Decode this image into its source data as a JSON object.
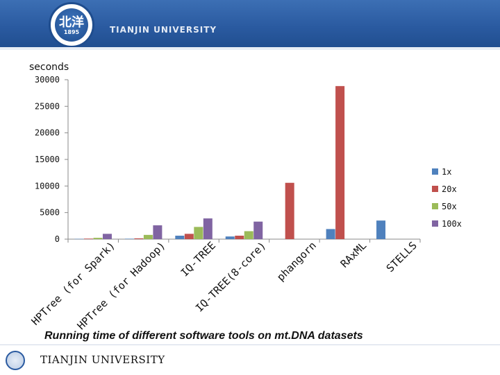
{
  "header": {
    "logo_text": "北洋",
    "logo_year": "1895",
    "university": "TIANJIN UNIVERSITY"
  },
  "footer": {
    "university": "TIANJIN UNIVERSITY"
  },
  "chart_data": {
    "type": "bar",
    "title": "Running time of different software tools on mt.DNA datasets",
    "ylabel": "seconds",
    "xlabel": "",
    "ylim": [
      0,
      30000
    ],
    "yticks": [
      0,
      5000,
      10000,
      15000,
      20000,
      25000,
      30000
    ],
    "grid": false,
    "legend_position": "right",
    "categories": [
      "HPTree (for Spark)",
      "HPTree (for Hadoop)",
      "IQ-TREE",
      "IQ-TREE(8-core)",
      "phangorn",
      "RAxML",
      "STELLS"
    ],
    "series": [
      {
        "name": "1x",
        "color": "#4f81bd",
        "values": [
          50,
          80,
          650,
          500,
          0,
          1900,
          3500
        ]
      },
      {
        "name": "20x",
        "color": "#c0504d",
        "values": [
          100,
          150,
          1000,
          650,
          10600,
          28800,
          0
        ]
      },
      {
        "name": "50x",
        "color": "#9bbb59",
        "values": [
          250,
          800,
          2300,
          1500,
          0,
          0,
          0
        ]
      },
      {
        "name": "100x",
        "color": "#8064a2",
        "values": [
          1000,
          2600,
          3900,
          3300,
          0,
          0,
          0
        ]
      }
    ]
  }
}
